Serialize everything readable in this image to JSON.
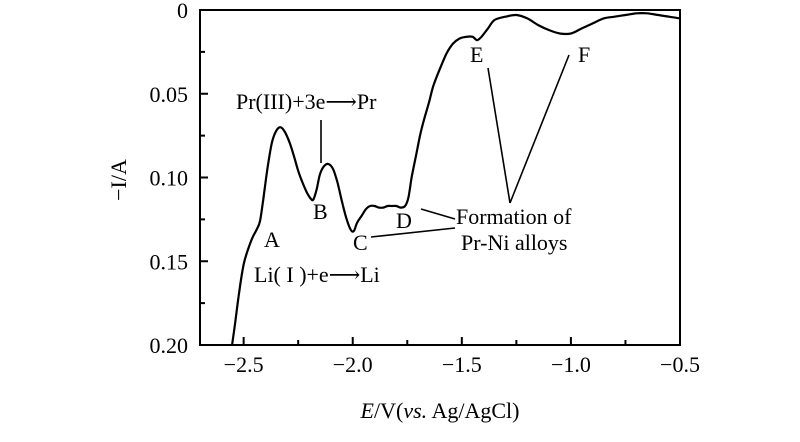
{
  "chart_data": {
    "type": "line",
    "title": "",
    "xlabel_parts": {
      "e": "E",
      "slash_v": "/V(",
      "vs": "vs.",
      "tail": " Ag/AgCl)"
    },
    "ylabel": "−I/A",
    "xlim": [
      -2.7,
      -0.5
    ],
    "ylim": [
      0.2,
      0
    ],
    "y_axis_reversed": true,
    "x_ticks": [
      -2.5,
      -2.0,
      -1.5,
      -1.0,
      -0.5
    ],
    "x_tick_labels": [
      "−2.5",
      "−2.0",
      "−1.5",
      "−1.0",
      "−0.5"
    ],
    "y_ticks": [
      0,
      0.05,
      0.1,
      0.15,
      0.2
    ],
    "y_tick_labels": [
      "0",
      "0.05",
      "0.10",
      "0.15",
      "0.20"
    ],
    "grid": false,
    "legend": "none",
    "series": [
      {
        "x": [
          -2.553,
          -2.54,
          -2.52,
          -2.5,
          -2.48,
          -2.46,
          -2.44,
          -2.425,
          -2.41,
          -2.39,
          -2.37,
          -2.35,
          -2.33,
          -2.31,
          -2.29,
          -2.27,
          -2.25,
          -2.23,
          -2.21,
          -2.19,
          -2.18,
          -2.165,
          -2.15,
          -2.13,
          -2.11,
          -2.09,
          -2.07,
          -2.05,
          -2.03,
          -2.01,
          -1.995,
          -1.98,
          -1.96,
          -1.94,
          -1.92,
          -1.9,
          -1.88,
          -1.86,
          -1.84,
          -1.82,
          -1.8,
          -1.78,
          -1.76,
          -1.745,
          -1.73,
          -1.71,
          -1.69,
          -1.67,
          -1.65,
          -1.63,
          -1.6,
          -1.57,
          -1.54,
          -1.51,
          -1.48,
          -1.45,
          -1.43,
          -1.41,
          -1.38,
          -1.35,
          -1.3,
          -1.25,
          -1.2,
          -1.15,
          -1.1,
          -1.05,
          -1.0,
          -0.95,
          -0.9,
          -0.85,
          -0.8,
          -0.75,
          -0.7,
          -0.65,
          -0.6,
          -0.55,
          -0.5
        ],
        "y": [
          0.2,
          0.188,
          0.168,
          0.152,
          0.143,
          0.136,
          0.131,
          0.126,
          0.113,
          0.094,
          0.079,
          0.072,
          0.07,
          0.073,
          0.079,
          0.087,
          0.096,
          0.103,
          0.109,
          0.113,
          0.113,
          0.107,
          0.098,
          0.093,
          0.092,
          0.095,
          0.103,
          0.114,
          0.124,
          0.131,
          0.132,
          0.127,
          0.123,
          0.119,
          0.117,
          0.117,
          0.118,
          0.118,
          0.117,
          0.117,
          0.117,
          0.118,
          0.117,
          0.112,
          0.1,
          0.087,
          0.074,
          0.064,
          0.055,
          0.045,
          0.035,
          0.026,
          0.02,
          0.017,
          0.016,
          0.016,
          0.018,
          0.016,
          0.011,
          0.006,
          0.004,
          0.003,
          0.005,
          0.009,
          0.012,
          0.014,
          0.014,
          0.011,
          0.008,
          0.005,
          0.004,
          0.003,
          0.002,
          0.002,
          0.003,
          0.004,
          0.005
        ]
      }
    ],
    "annotations": {
      "peak_a": "A",
      "peak_b": "B",
      "peak_c": "C",
      "peak_d": "D",
      "peak_e": "E",
      "peak_f": "F",
      "reaction_pr": "Pr(III)+3e⟶Pr",
      "reaction_li": "Li( I )+e⟶Li",
      "alloys_line1": "Formation of",
      "alloys_line2": "Pr-Ni alloys"
    }
  }
}
